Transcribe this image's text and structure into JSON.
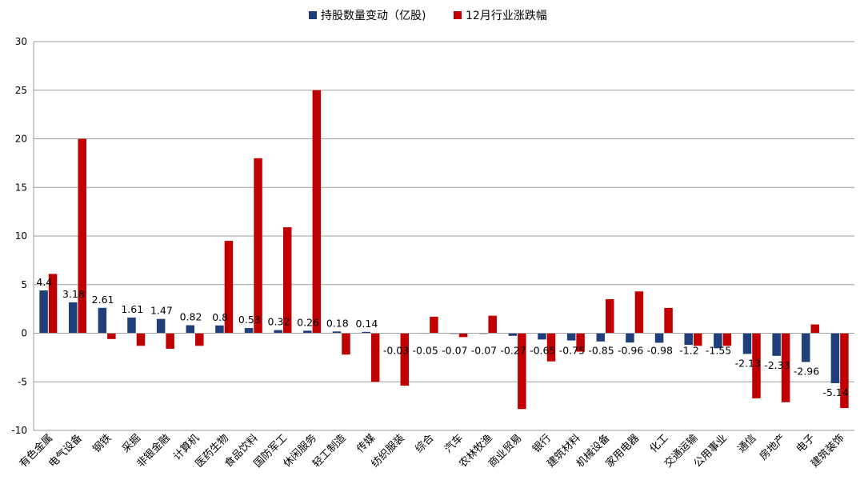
{
  "chart_data": {
    "type": "bar",
    "title": "",
    "xlabel": "",
    "ylabel": "",
    "ylim": [
      -10,
      30
    ],
    "yticks": [
      30,
      25,
      20,
      15,
      10,
      5,
      0,
      -5,
      -10
    ],
    "grid": true,
    "legend_position": "top",
    "colors": {
      "holding_change": "#1f3f7a",
      "dec_change": "#c00000",
      "grid": "#9e9e9e",
      "text": "#000000"
    },
    "categories": [
      "有色金属",
      "电气设备",
      "钢铁",
      "采掘",
      "非银金融",
      "计算机",
      "医药生物",
      "食品饮料",
      "国防军工",
      "休闲服务",
      "轻工制造",
      "传媒",
      "纺织服装",
      "综合",
      "汽车",
      "农林牧渔",
      "商业贸易",
      "银行",
      "建筑材料",
      "机械设备",
      "家用电器",
      "化工",
      "交通运输",
      "公用事业",
      "通信",
      "房地产",
      "电子",
      "建筑装饰"
    ],
    "series": [
      {
        "name": "持股数量变动（亿股)",
        "values": [
          4.4,
          3.18,
          2.61,
          1.61,
          1.47,
          0.82,
          0.8,
          0.53,
          0.32,
          0.26,
          0.18,
          0.14,
          -0.03,
          -0.05,
          -0.07,
          -0.07,
          -0.27,
          -0.65,
          -0.75,
          -0.85,
          -0.96,
          -0.98,
          -1.2,
          -1.55,
          -2.13,
          -2.33,
          -2.96,
          -5.14
        ],
        "labels": [
          "4.4",
          "3.18",
          "2.61",
          "1.61",
          "1.47",
          "0.82",
          "0.8",
          "0.53",
          "0.32",
          "0.26",
          "0.18",
          "0.14",
          "-0.03",
          "-0.05",
          "-0.07",
          "-0.07",
          "-0.27",
          "-0.65",
          "-0.75",
          "-0.85",
          "-0.96",
          "-0.98",
          "-1.2",
          "-1.55",
          "-2.13",
          "-2.33",
          "-2.96",
          "-5.14"
        ]
      },
      {
        "name": "12月行业涨跌幅",
        "values": [
          6.1,
          20.0,
          -0.6,
          -1.3,
          -1.6,
          -1.3,
          9.5,
          18.0,
          10.9,
          25.0,
          -2.2,
          -5.0,
          -5.4,
          1.7,
          -0.4,
          1.8,
          -7.8,
          -2.9,
          -1.9,
          3.5,
          4.3,
          2.6,
          -1.3,
          -1.3,
          -6.7,
          -7.1,
          0.9,
          -7.7
        ]
      }
    ]
  }
}
